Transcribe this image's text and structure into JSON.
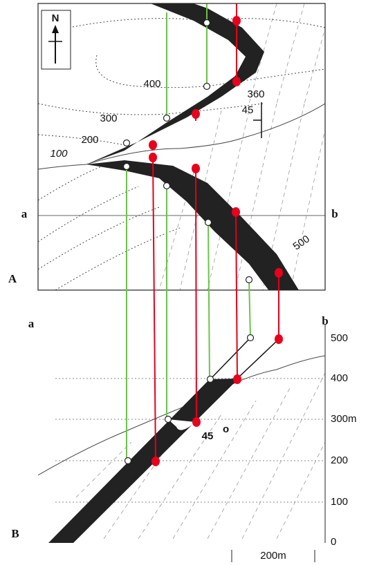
{
  "map": {
    "label": "A",
    "north": "N",
    "contours": [
      "400",
      "300",
      "200",
      "100"
    ],
    "strike": "360",
    "dip": "45",
    "ends": [
      "a",
      "b"
    ],
    "elevation": "500"
  },
  "section": {
    "label": "B",
    "ends": [
      "a",
      "b"
    ],
    "elevations": [
      "500",
      "400",
      "300m",
      "200",
      "100",
      "0"
    ],
    "angle": "45",
    "angle_unit": "o",
    "scale": "200m"
  }
}
